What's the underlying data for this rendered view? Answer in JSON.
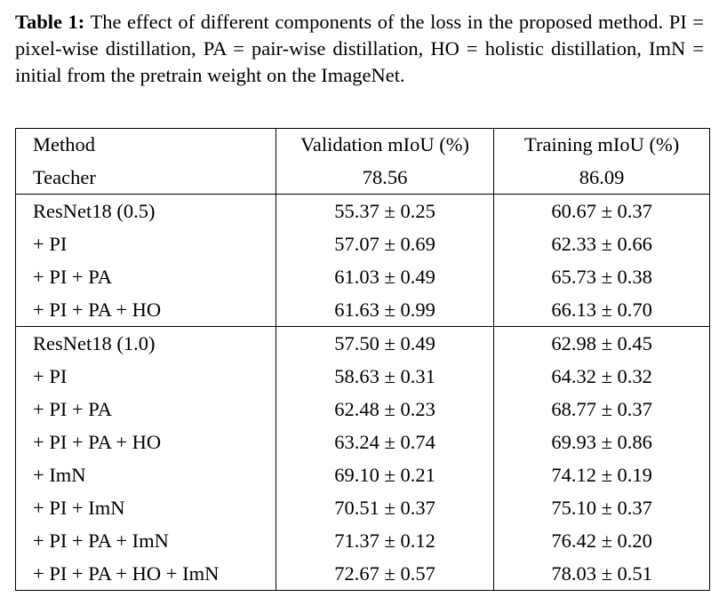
{
  "caption": {
    "label": "Table 1:",
    "text": "The effect of different components of the loss in the proposed method. PI = pixel-wise distillation, PA = pair-wise distillation, HO = holistic distillation, ImN = initial from the pretrain weight on the ImageNet."
  },
  "table": {
    "headers": {
      "method": "Method",
      "validation": "Validation mIoU (%)",
      "training": "Training mIoU (%)"
    },
    "teacher": {
      "method": "Teacher",
      "validation": "78.56",
      "training": "86.09"
    },
    "group_05": [
      {
        "method": "ResNet18 (0.5)",
        "validation": "55.37 ± 0.25",
        "training": "60.67 ± 0.37"
      },
      {
        "method": "+ PI",
        "validation": "57.07 ± 0.69",
        "training": "62.33 ± 0.66"
      },
      {
        "method": "+ PI + PA",
        "validation": "61.03 ± 0.49",
        "training": "65.73 ± 0.38"
      },
      {
        "method": "+ PI + PA + HO",
        "validation": "61.63 ± 0.99",
        "training": "66.13 ± 0.70"
      }
    ],
    "group_10": [
      {
        "method": "ResNet18 (1.0)",
        "validation": "57.50 ± 0.49",
        "training": "62.98 ± 0.45"
      },
      {
        "method": "+ PI",
        "validation": "58.63 ± 0.31",
        "training": "64.32 ± 0.32"
      },
      {
        "method": "+ PI + PA",
        "validation": "62.48 ± 0.23",
        "training": "68.77 ± 0.37"
      },
      {
        "method": "+ PI + PA + HO",
        "validation": "63.24 ± 0.74",
        "training": "69.93 ± 0.86"
      },
      {
        "method": "+ ImN",
        "validation": "69.10 ± 0.21",
        "training": "74.12 ± 0.19"
      },
      {
        "method": "+ PI + ImN",
        "validation": "70.51 ± 0.37",
        "training": "75.10 ± 0.37"
      },
      {
        "method": "+ PI + PA + ImN",
        "validation": "71.37 ± 0.12",
        "training": "76.42 ± 0.20"
      },
      {
        "method": "+ PI + PA + HO + ImN",
        "validation": "72.67 ± 0.57",
        "training": "78.03 ± 0.51"
      }
    ]
  }
}
